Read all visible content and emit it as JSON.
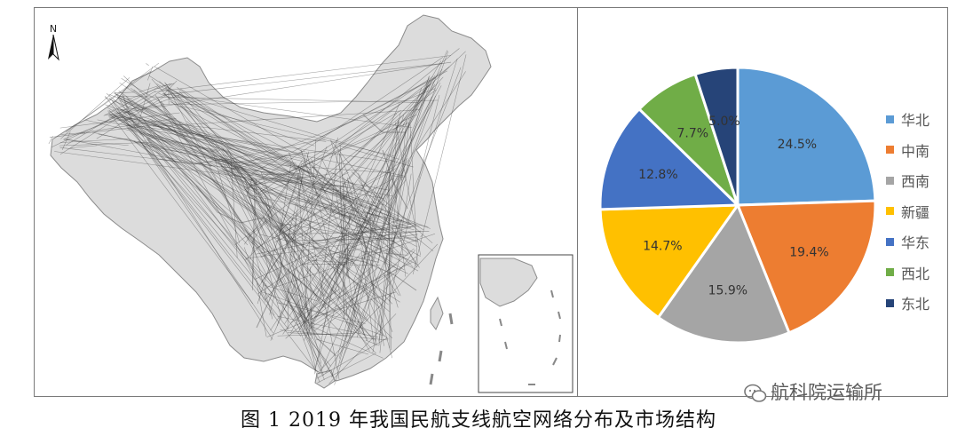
{
  "caption": "图 1 2019 年我国民航支线航空网络分布及市场结构",
  "watermark": "航科院运输所",
  "north_label": "N",
  "map": {
    "icon": "china-route-network-map",
    "inset_icon": "south-china-sea-inset-map"
  },
  "chart_data": {
    "type": "pie",
    "categories": [
      "华北",
      "中南",
      "西南",
      "新疆",
      "华东",
      "西北",
      "东北"
    ],
    "values": [
      24.5,
      19.4,
      15.9,
      14.7,
      12.8,
      7.7,
      5.0
    ],
    "labels": [
      "24.5%",
      "19.4%",
      "15.9%",
      "14.7%",
      "12.8%",
      "7.7%",
      "5.0%"
    ],
    "colors": [
      "#5b9bd5",
      "#ed7d31",
      "#a5a5a5",
      "#ffc000",
      "#4472c4",
      "#70ad47",
      "#264478"
    ],
    "start_angle": "12 o'clock",
    "direction": "clockwise",
    "legend_position": "right"
  }
}
